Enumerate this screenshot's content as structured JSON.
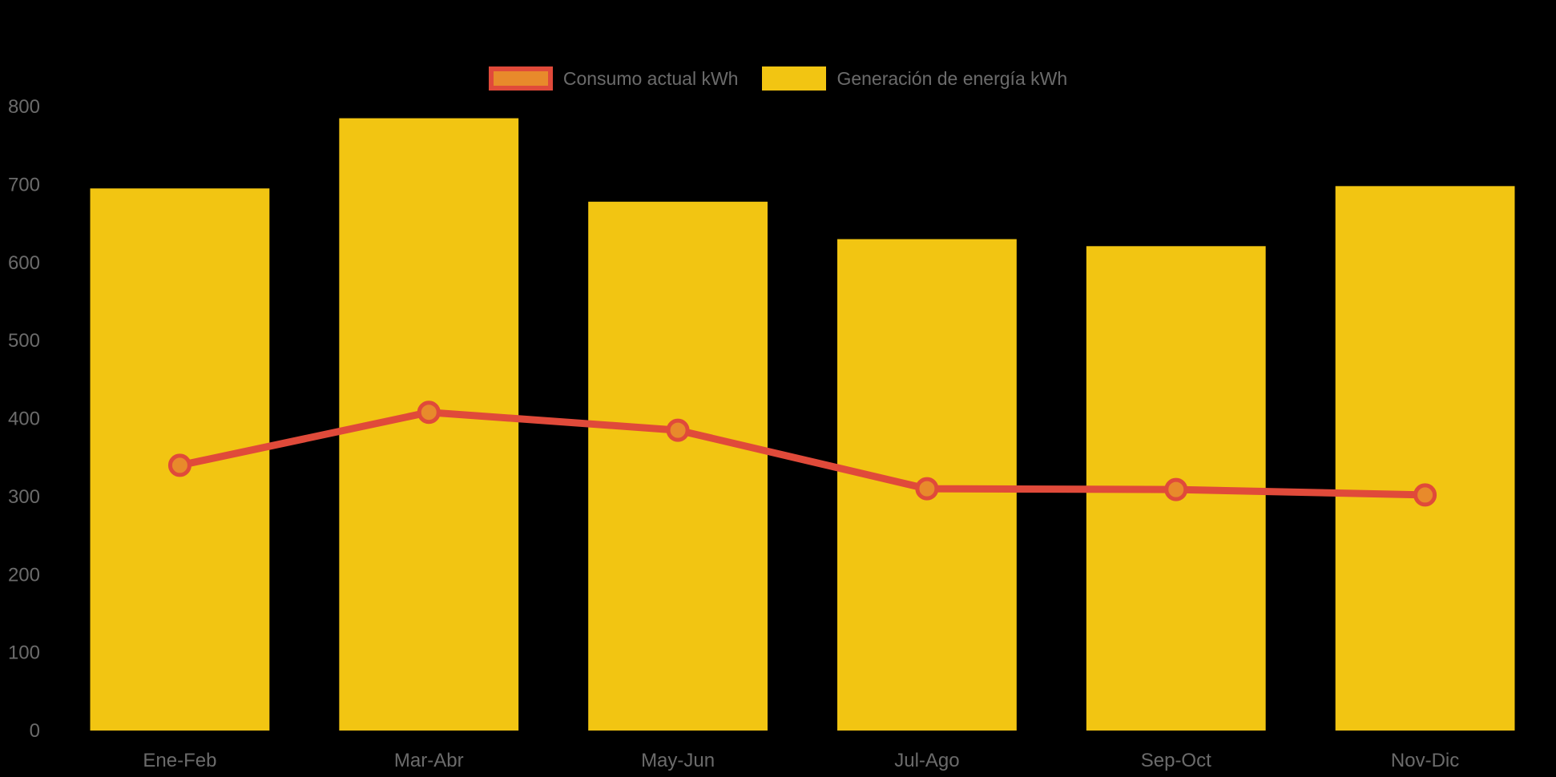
{
  "page": {
    "background": "#000000"
  },
  "legend": {
    "items": [
      {
        "label": "Consumo actual kWh",
        "swatch_fill": "#E88A2B",
        "swatch_border": "#E04A3A"
      },
      {
        "label": "Generación de energía kWh",
        "swatch_fill": "#F2C512",
        "swatch_border": "#F2C512"
      }
    ]
  },
  "chart_data": {
    "type": "bar",
    "title": "",
    "xlabel": "",
    "ylabel": "",
    "categories": [
      "Ene-Feb",
      "Mar-Abr",
      "May-Jun",
      "Jul-Ago",
      "Sep-Oct",
      "Nov-Dic"
    ],
    "series": [
      {
        "name": "Consumo actual kWh",
        "type": "line",
        "color": "#E04A3A",
        "point_fill": "#E88A2B",
        "values": [
          340,
          408,
          385,
          310,
          309,
          302
        ]
      },
      {
        "name": "Generación de energía kWh",
        "type": "bar",
        "color": "#F2C512",
        "values": [
          695,
          785,
          678,
          630,
          621,
          698
        ]
      }
    ],
    "ylim": [
      0,
      800
    ],
    "y_ticks": [
      0,
      100,
      200,
      300,
      400,
      500,
      600,
      700,
      800
    ],
    "grid": false,
    "legend_position": "top-center",
    "axis_text_color": "#6B6B6B"
  }
}
